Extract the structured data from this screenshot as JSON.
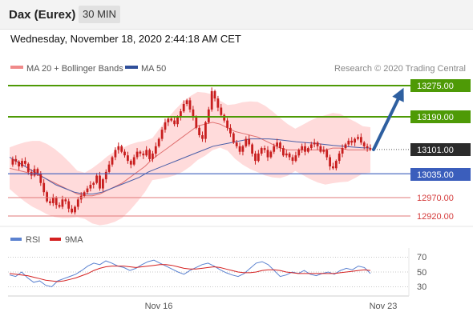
{
  "header": {
    "instrument": "Dax (Eurex)",
    "timeframe": "30 MIN",
    "datetime": "Wednesday, November 18, 2020 2:44:18 AM CET"
  },
  "legend": {
    "ma20": "MA 20 + Bollinger Bands",
    "ma50": "MA 50",
    "copyright": "Research © 2020 Trading Central"
  },
  "colors": {
    "candle": "#c81e1e",
    "bands": "#ffd2d2",
    "ma20": "#e07070",
    "ma50": "#4a5fa8",
    "resistance": "#4e9a06",
    "pivot": "#3b5ebc",
    "support": "#e07a7a",
    "current": "#2b2b2b",
    "arrow": "#2e5fa0",
    "rsi": "#5b82d0",
    "rsi_ma": "#d42020"
  },
  "levels": [
    {
      "value": "13275.00",
      "kind": "resistance"
    },
    {
      "value": "13190.00",
      "kind": "resistance"
    },
    {
      "value": "13101.00",
      "kind": "current"
    },
    {
      "value": "13035.00",
      "kind": "pivot"
    },
    {
      "value": "12970.00",
      "kind": "support"
    },
    {
      "value": "12920.00",
      "kind": "support"
    }
  ],
  "rsi_panel": {
    "legend_rsi": "RSI",
    "legend_ma": "9MA",
    "ticks": [
      "70",
      "50",
      "30"
    ]
  },
  "xaxis": {
    "labels": [
      "Nov 16",
      "Nov 23"
    ]
  },
  "chart_data": {
    "type": "candlestick",
    "title": "Dax (Eurex)",
    "ylim": [
      12900,
      13290
    ],
    "x_labels": [
      "Nov 16",
      "Nov 23"
    ],
    "levels": [
      13275,
      13190,
      13101,
      13035,
      12970,
      12920
    ],
    "projection_target": 13275,
    "price_path": [
      13060,
      13075,
      13068,
      13055,
      13070,
      13062,
      13040,
      13030,
      13048,
      13035,
      13010,
      12985,
      12960,
      12955,
      12970,
      12950,
      12945,
      12965,
      12960,
      12940,
      12930,
      12945,
      12965,
      12975,
      12985,
      12995,
      13005,
      13010,
      13030,
      12995,
      13020,
      13040,
      13060,
      13080,
      13100,
      13110,
      13095,
      13085,
      13070,
      13060,
      13080,
      13095,
      13090,
      13085,
      13100,
      13075,
      13090,
      13110,
      13130,
      13155,
      13175,
      13185,
      13180,
      13170,
      13190,
      13205,
      13225,
      13235,
      13210,
      13190,
      13160,
      13140,
      13130,
      13175,
      13210,
      13260,
      13240,
      13215,
      13195,
      13180,
      13160,
      13145,
      13120,
      13110,
      13095,
      13110,
      13130,
      13115,
      13090,
      13070,
      13090,
      13105,
      13100,
      13080,
      13095,
      13110,
      13120,
      13105,
      13085,
      13090,
      13080,
      13070,
      13085,
      13100,
      13110,
      13095,
      13105,
      13115,
      13120,
      13110,
      13095,
      13100,
      13080,
      13055,
      13050,
      13070,
      13090,
      13105,
      13115,
      13125,
      13120,
      13130,
      13135,
      13120,
      13110,
      13105,
      13101
    ],
    "ma20": [
      13050,
      13045,
      13040,
      13035,
      13030,
      13020,
      13010,
      13000,
      12990,
      12980,
      12975,
      12975,
      12980,
      12990,
      13000,
      13010,
      13025,
      13040,
      13055,
      13075,
      13090,
      13105,
      13120,
      13135,
      13150,
      13165,
      13170,
      13175,
      13170,
      13160,
      13150,
      13145,
      13140,
      13135,
      13125,
      13115,
      13105,
      13100,
      13100,
      13100,
      13100,
      13100,
      13100,
      13105,
      13105,
      13100,
      13100,
      13100,
      13100
    ],
    "ma50": [
      13080,
      13065,
      13050,
      13035,
      13020,
      13005,
      12995,
      12985,
      12980,
      12980,
      12985,
      12995,
      13005,
      13015,
      13025,
      13040,
      13050,
      13060,
      13070,
      13080,
      13090,
      13100,
      13110,
      13115,
      13120,
      13125,
      13130,
      13130,
      13130,
      13128,
      13125,
      13122,
      13120,
      13118,
      13115,
      13112,
      13110,
      13108,
      13106,
      13105
    ],
    "rsi": [
      46,
      44,
      50,
      42,
      36,
      38,
      32,
      30,
      38,
      41,
      44,
      47,
      52,
      58,
      62,
      60,
      65,
      62,
      58,
      56,
      52,
      55,
      60,
      64,
      66,
      62,
      58,
      54,
      50,
      47,
      52,
      56,
      60,
      62,
      58,
      53,
      49,
      46,
      44,
      48,
      55,
      62,
      64,
      60,
      52,
      44,
      46,
      50,
      48,
      52,
      47,
      45,
      48,
      50,
      47,
      52,
      55,
      53,
      58,
      56,
      48
    ],
    "rsi_ma": [
      48,
      47,
      46,
      45,
      43,
      41,
      39,
      38,
      37,
      38,
      40,
      42,
      45,
      48,
      52,
      55,
      57,
      58,
      58,
      58,
      57,
      56,
      57,
      58,
      59,
      60,
      60,
      59,
      57,
      55,
      54,
      54,
      55,
      56,
      57,
      56,
      54,
      52,
      50,
      49,
      49,
      50,
      52,
      53,
      53,
      52,
      50,
      49,
      48,
      48,
      48,
      48,
      48,
      48,
      48,
      49,
      50,
      51,
      52,
      53,
      52
    ]
  }
}
